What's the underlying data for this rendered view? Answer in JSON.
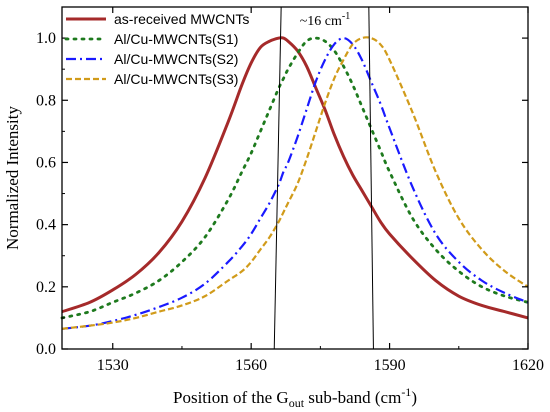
{
  "chart_data": {
    "type": "line",
    "xlabel_parts": [
      "Position of the G",
      "out",
      " sub-band (cm",
      "-1",
      ")"
    ],
    "ylabel": "Normalized Intensity",
    "xlim": [
      1519,
      1620
    ],
    "ylim": [
      0,
      1.1
    ],
    "xticks": [
      1530,
      1560,
      1590,
      1620
    ],
    "yticks": [
      0.0,
      0.2,
      0.4,
      0.6,
      0.8,
      1.0
    ],
    "grid": false,
    "legend_position": "top-left",
    "annotation": {
      "text_parts": [
        "~16 cm",
        "-1"
      ],
      "x_range": [
        1565,
        1586
      ]
    },
    "x": [
      1519,
      1525,
      1530,
      1535,
      1540,
      1545,
      1550,
      1555,
      1558,
      1560,
      1562,
      1564,
      1566,
      1567,
      1568,
      1570,
      1572,
      1574,
      1576,
      1578,
      1580,
      1582,
      1584,
      1586,
      1588,
      1590,
      1595,
      1600,
      1605,
      1610,
      1615,
      1620
    ],
    "series": [
      {
        "name": "as-received MWCNTs",
        "color": "#a52a2a",
        "style": "solid",
        "values": [
          0.12,
          0.15,
          0.19,
          0.24,
          0.31,
          0.41,
          0.55,
          0.73,
          0.85,
          0.92,
          0.97,
          0.99,
          1.0,
          1.0,
          0.99,
          0.96,
          0.91,
          0.84,
          0.77,
          0.69,
          0.62,
          0.56,
          0.51,
          0.46,
          0.41,
          0.37,
          0.29,
          0.22,
          0.17,
          0.14,
          0.12,
          0.1
        ]
      },
      {
        "name": "Al/Cu-MWCNTs(S1)",
        "color": "#1e7a1e",
        "style": "dotted",
        "values": [
          0.1,
          0.12,
          0.15,
          0.18,
          0.22,
          0.28,
          0.36,
          0.48,
          0.57,
          0.63,
          0.7,
          0.77,
          0.84,
          0.87,
          0.9,
          0.95,
          0.99,
          1.0,
          0.99,
          0.96,
          0.91,
          0.85,
          0.78,
          0.71,
          0.64,
          0.57,
          0.42,
          0.32,
          0.25,
          0.2,
          0.17,
          0.15
        ]
      },
      {
        "name": "Al/Cu-MWCNTs(S2)",
        "color": "#1a1aff",
        "style": "dash-dot",
        "values": [
          0.065,
          0.075,
          0.09,
          0.11,
          0.135,
          0.165,
          0.21,
          0.28,
          0.33,
          0.37,
          0.42,
          0.47,
          0.53,
          0.57,
          0.6,
          0.68,
          0.77,
          0.86,
          0.93,
          0.98,
          1.0,
          0.98,
          0.93,
          0.86,
          0.79,
          0.71,
          0.52,
          0.37,
          0.28,
          0.22,
          0.18,
          0.15
        ]
      },
      {
        "name": "Al/Cu-MWCNTs(S3)",
        "color": "#d19b1a",
        "style": "dashed",
        "values": [
          0.065,
          0.075,
          0.085,
          0.1,
          0.12,
          0.14,
          0.17,
          0.22,
          0.25,
          0.28,
          0.32,
          0.36,
          0.41,
          0.44,
          0.47,
          0.53,
          0.61,
          0.7,
          0.79,
          0.87,
          0.93,
          0.98,
          1.0,
          1.0,
          0.98,
          0.93,
          0.76,
          0.57,
          0.42,
          0.32,
          0.25,
          0.2
        ]
      }
    ]
  }
}
